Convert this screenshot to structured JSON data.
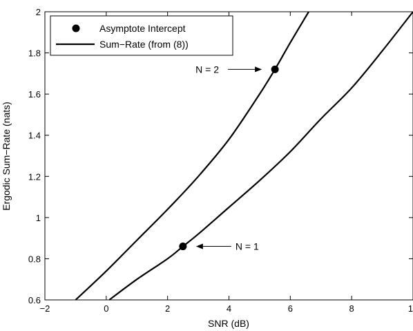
{
  "chart_data": {
    "type": "line",
    "xlabel": "SNR (dB)",
    "ylabel": "Ergodic Sum−Rate (nats)",
    "xlim": [
      -2,
      10
    ],
    "ylim": [
      0.6,
      2.0
    ],
    "x_ticks": [
      -2,
      0,
      2,
      4,
      6,
      8,
      10
    ],
    "x_tick_labels": [
      "−2",
      "0",
      "2",
      "4",
      "6",
      "8",
      "10"
    ],
    "y_ticks": [
      0.6,
      0.8,
      1.0,
      1.2,
      1.4,
      1.6,
      1.8,
      2.0
    ],
    "y_tick_labels": [
      "0.6",
      "0.8",
      "1",
      "1.2",
      "1.4",
      "1.6",
      "1.8",
      "2"
    ],
    "grid": false,
    "legend_position": "top-left",
    "legend": {
      "marker_label": "Asymptote Intercept",
      "line_label": "Sum−Rate (from (8))"
    },
    "series": [
      {
        "curve": "N = 2",
        "x": [
          -1.0,
          0.0,
          1.0,
          2.0,
          3.0,
          4.0,
          5.0,
          5.5,
          6.0,
          6.6
        ],
        "y": [
          0.6,
          0.74,
          0.89,
          1.04,
          1.2,
          1.38,
          1.6,
          1.72,
          1.85,
          2.0
        ]
      },
      {
        "curve": "N = 1",
        "x": [
          0.1,
          1.0,
          2.0,
          2.5,
          3.0,
          4.0,
          5.0,
          6.0,
          7.0,
          8.0,
          9.0,
          10.0
        ],
        "y": [
          0.6,
          0.7,
          0.8,
          0.86,
          0.92,
          1.05,
          1.18,
          1.32,
          1.48,
          1.63,
          1.81,
          2.0
        ]
      }
    ],
    "markers": [
      {
        "x": 5.5,
        "y": 1.72
      },
      {
        "x": 2.5,
        "y": 0.86
      }
    ],
    "annotations": [
      {
        "text": "N = 2",
        "x": 5.5,
        "y": 1.72
      },
      {
        "text": "N = 1",
        "x": 2.5,
        "y": 0.86
      }
    ],
    "colors": {
      "line": "#000000",
      "marker": "#000000",
      "background": "#ffffff"
    }
  }
}
